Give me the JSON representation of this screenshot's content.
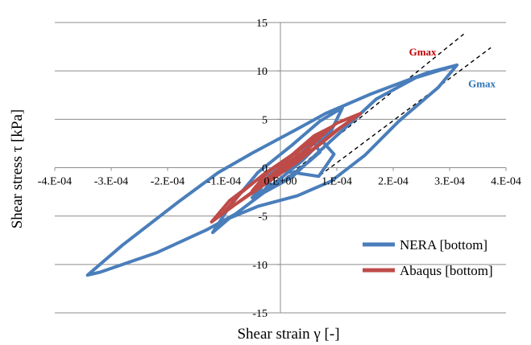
{
  "chart_data": {
    "type": "line",
    "xlabel": "Shear strain γ [-]",
    "ylabel": "Shear stress τ [kPa]",
    "xlim": [
      -0.0004,
      0.0004
    ],
    "ylim": [
      -15,
      15
    ],
    "x_ticks": [
      -0.0004,
      -0.0003,
      -0.0002,
      -0.0001,
      0,
      0.0001,
      0.0002,
      0.0003,
      0.0004
    ],
    "x_tick_labels": [
      "-4.E-04",
      "-3.E-04",
      "-2.E-04",
      "-1.E-04",
      "0.E+00",
      "1.E-04",
      "2.E-04",
      "3.E-04",
      "4.E-04"
    ],
    "y_ticks": [
      -15,
      -10,
      -5,
      0,
      5,
      10,
      15
    ],
    "y_tick_labels": [
      "-15",
      "-10",
      "-5",
      "0",
      "5",
      "10",
      "15"
    ],
    "grid": "horizontal",
    "legend_position": "bottom-right",
    "colors": {
      "nera": "#4a7ebb",
      "abaqus": "#be4b48",
      "gmax_nera_text": "#2e75b6",
      "gmax_abaqus_text": "#c00000"
    },
    "series": [
      {
        "name": "NERA [bottom]",
        "color": "#4a7ebb",
        "points": [
          [
            0.000313,
            10.6
          ],
          [
            0.00024,
            9.3
          ],
          [
            0.00017,
            7.1
          ],
          [
            0.00012,
            4.4
          ],
          [
            6e-05,
            1.2
          ],
          [
            2e-05,
            -1.0
          ],
          [
            -3e-05,
            -2.6
          ],
          [
            -8e-05,
            -4.8
          ],
          [
            -0.00013,
            -6.4
          ],
          [
            -0.00022,
            -8.8
          ],
          [
            -0.00032,
            -10.8
          ],
          [
            -0.000342,
            -11.1
          ],
          [
            -0.00028,
            -8.0
          ],
          [
            -0.00018,
            -3.5
          ],
          [
            -0.00011,
            -0.5
          ],
          [
            -5e-05,
            1.5
          ],
          [
            3e-05,
            4.0
          ],
          [
            8e-05,
            5.6
          ],
          [
            0.00012,
            6.6
          ],
          [
            0.00016,
            7.6
          ],
          [
            0.00026,
            9.8
          ],
          [
            0.000313,
            10.6
          ],
          [
            0.00028,
            8.3
          ],
          [
            0.00021,
            4.8
          ],
          [
            0.00015,
            1.3
          ],
          [
            9e-05,
            -1.4
          ],
          [
            3e-05,
            -2.9
          ],
          [
            -4e-05,
            -4.0
          ],
          [
            -9e-05,
            -5.2
          ],
          [
            -0.00012,
            -6.7
          ],
          [
            -9e-05,
            -4.0
          ],
          [
            -4e-05,
            -0.5
          ],
          [
            2e-05,
            2.3
          ],
          [
            7e-05,
            4.8
          ],
          [
            0.00011,
            6.2
          ],
          [
            9e-05,
            3.8
          ],
          [
            4e-05,
            0.8
          ],
          [
            -1e-05,
            -1.6
          ],
          [
            -5e-05,
            -3.1
          ],
          [
            -2e-05,
            -1.0
          ],
          [
            3e-05,
            1.0
          ],
          [
            6e-05,
            2.6
          ],
          [
            7e-05,
            1.6
          ],
          [
            5e-05,
            0.6
          ],
          [
            1e-05,
            -1.2
          ],
          [
            -3e-05,
            -2.5
          ],
          [
            0.0,
            0.2
          ],
          [
            4e-05,
            1.3
          ],
          [
            1e-05,
            -0.4
          ],
          [
            6.8e-05,
            -0.9
          ],
          [
            9.5e-05,
            1.4
          ],
          [
            7e-05,
            3.0
          ],
          [
            3e-05,
            1.2
          ],
          [
            -2e-05,
            -0.8
          ],
          [
            -4e-05,
            -2.6
          ]
        ]
      },
      {
        "name": "Abaqus [bottom]",
        "color": "#be4b48",
        "points": [
          [
            0.000142,
            5.6
          ],
          [
            0.0001,
            3.9
          ],
          [
            6e-05,
            2.0
          ],
          [
            1e-05,
            0.0
          ],
          [
            -4e-05,
            -2.1
          ],
          [
            -8e-05,
            -3.8
          ],
          [
            -0.000122,
            -5.6
          ],
          [
            -9e-05,
            -3.4
          ],
          [
            -4e-05,
            -1.2
          ],
          [
            1e-05,
            0.8
          ],
          [
            6e-05,
            2.9
          ],
          [
            0.0001,
            4.6
          ],
          [
            0.000142,
            5.6
          ],
          [
            0.00011,
            4.3
          ],
          [
            7e-05,
            2.4
          ],
          [
            3e-05,
            0.6
          ],
          [
            -2e-05,
            -1.4
          ],
          [
            -6e-05,
            -3.0
          ],
          [
            -0.0001,
            -4.6
          ],
          [
            -7e-05,
            -2.6
          ],
          [
            -3e-05,
            -0.7
          ],
          [
            2e-05,
            1.3
          ],
          [
            6e-05,
            3.3
          ],
          [
            9e-05,
            4.2
          ],
          [
            5e-05,
            2.0
          ],
          [
            0.0,
            0.0
          ],
          [
            -5e-05,
            -2.4
          ],
          [
            -2e-05,
            -0.3
          ],
          [
            3e-05,
            1.6
          ]
        ]
      }
    ],
    "reference_lines": [
      {
        "label": "Gmax",
        "style": "dashed",
        "points": [
          [
            0.0,
            -1.5
          ],
          [
            0.000325,
            13.8
          ]
        ]
      },
      {
        "label": "Gmax",
        "style": "dashed",
        "points": [
          [
            7e-05,
            -0.8
          ],
          [
            0.000373,
            12.4
          ]
        ]
      }
    ],
    "annotations": [
      {
        "text": "Gmax",
        "color": "#c00000",
        "x": 0.000228,
        "y": 11.6
      },
      {
        "text": "Gmax",
        "color": "#2e75b6",
        "x": 0.000333,
        "y": 8.3
      }
    ]
  }
}
